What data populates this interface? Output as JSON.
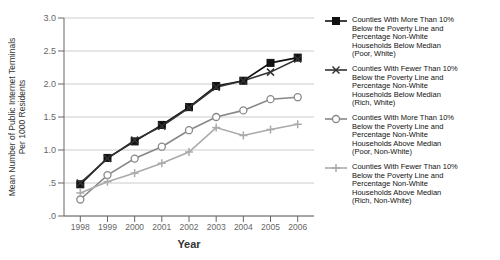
{
  "chart_data": {
    "type": "line",
    "x": [
      1998,
      1999,
      2000,
      2001,
      2002,
      2003,
      2004,
      2005,
      2006
    ],
    "series": [
      {
        "name": "Counties With More Than 10%\nBelow the Poverty Line and\nPercentage Non-White\nHouseholds Below Median\n(Poor, White)",
        "color": "#111111",
        "marker": "square",
        "line_style": "solid",
        "values": [
          0.48,
          0.88,
          1.13,
          1.38,
          1.65,
          1.97,
          2.05,
          2.32,
          2.4
        ]
      },
      {
        "name": "Counties With Fewer Than 10%\nBelow the Poverty Line and\nPercentage Non-White\nHouseholds Below Median\n(Rich, White)",
        "color": "#333333",
        "marker": "x",
        "line_style": "solid",
        "values": [
          0.5,
          0.87,
          1.15,
          1.36,
          1.64,
          1.95,
          2.05,
          2.18,
          2.38
        ]
      },
      {
        "name": "Counties With More Than 10%\nBelow the Poverty Line and\nPercentage Non-White\nHouseholds Above Median\n(Poor, Non-White)",
        "color": "#888888",
        "marker": "circle",
        "line_style": "solid",
        "values": [
          0.25,
          0.62,
          0.87,
          1.05,
          1.3,
          1.5,
          1.6,
          1.77,
          1.8
        ]
      },
      {
        "name": "Counties With Fewer Than 10%\nBelow the Poverty Line and\nPercentage Non-White\nHouseholds Above Median\n(Rich, Non-White)",
        "color": "#aaaaaa",
        "marker": "plus",
        "line_style": "solid",
        "values": [
          0.35,
          0.52,
          0.65,
          0.8,
          0.97,
          1.34,
          1.22,
          1.31,
          1.39
        ]
      }
    ],
    "xlabel": "Year",
    "ylabel": "Mean Number of Public Internet Terminals\nPer 1000 Residents",
    "xlim": [
      1997.4,
      2006.6
    ],
    "xticks": [
      1998,
      1999,
      2000,
      2001,
      2002,
      2003,
      2004,
      2005,
      2006
    ],
    "ylim": [
      0.0,
      3.0
    ],
    "yticks": [
      {
        "value": 0.0,
        "label": ".0"
      },
      {
        "value": 0.5,
        "label": ".5"
      },
      {
        "value": 1.0,
        "label": "1.0"
      },
      1.5,
      {
        "value": 2.0,
        "label": "2.0"
      },
      2.5,
      {
        "value": 3.0,
        "label": "3.0"
      }
    ],
    "grid": true,
    "legend": "right"
  }
}
